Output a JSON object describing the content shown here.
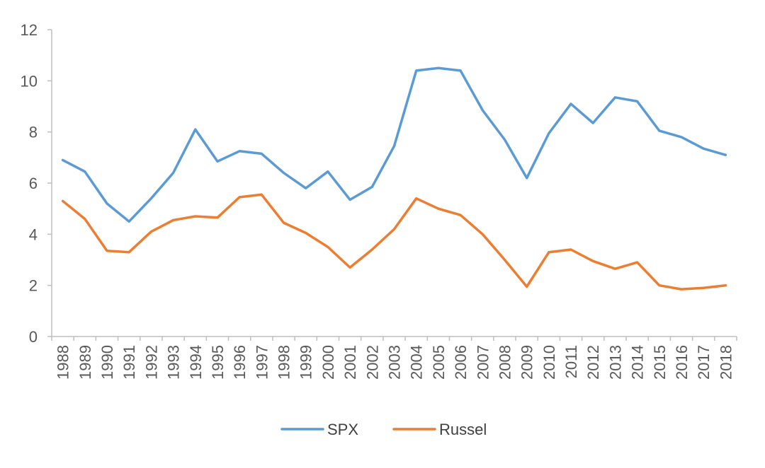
{
  "chart_data": {
    "type": "line",
    "title": "",
    "xlabel": "",
    "ylabel": "",
    "categories": [
      "1988",
      "1989",
      "1990",
      "1991",
      "1992",
      "1993",
      "1994",
      "1995",
      "1996",
      "1997",
      "1998",
      "1999",
      "2000",
      "2001",
      "2002",
      "2003",
      "2004",
      "2005",
      "2006",
      "2007",
      "2008",
      "2009",
      "2010",
      "2011",
      "2012",
      "2013",
      "2014",
      "2015",
      "2016",
      "2017",
      "2018"
    ],
    "ylim": [
      0,
      12
    ],
    "yticks": [
      "0",
      "2",
      "4",
      "6",
      "8",
      "10",
      "12"
    ],
    "grid": false,
    "legend_position": "bottom",
    "series": [
      {
        "name": "SPX",
        "color": "#5B9BD5",
        "values": [
          6.9,
          6.45,
          5.2,
          4.5,
          5.4,
          6.4,
          8.1,
          6.85,
          7.25,
          7.15,
          6.4,
          5.8,
          6.45,
          5.35,
          5.85,
          7.45,
          10.4,
          10.5,
          10.4,
          8.85,
          7.7,
          6.2,
          7.95,
          9.1,
          8.35,
          9.35,
          9.2,
          8.05,
          7.8,
          7.35,
          7.1
        ]
      },
      {
        "name": "Russel",
        "color": "#ED7D31",
        "values": [
          5.3,
          4.6,
          3.35,
          3.3,
          4.1,
          4.55,
          4.7,
          4.65,
          5.45,
          5.55,
          4.45,
          4.05,
          3.5,
          2.7,
          3.4,
          4.2,
          5.4,
          5.0,
          4.75,
          4.0,
          3.0,
          1.95,
          3.3,
          3.4,
          2.95,
          2.65,
          2.9,
          2.0,
          1.85,
          1.9,
          2.0
        ]
      }
    ]
  }
}
